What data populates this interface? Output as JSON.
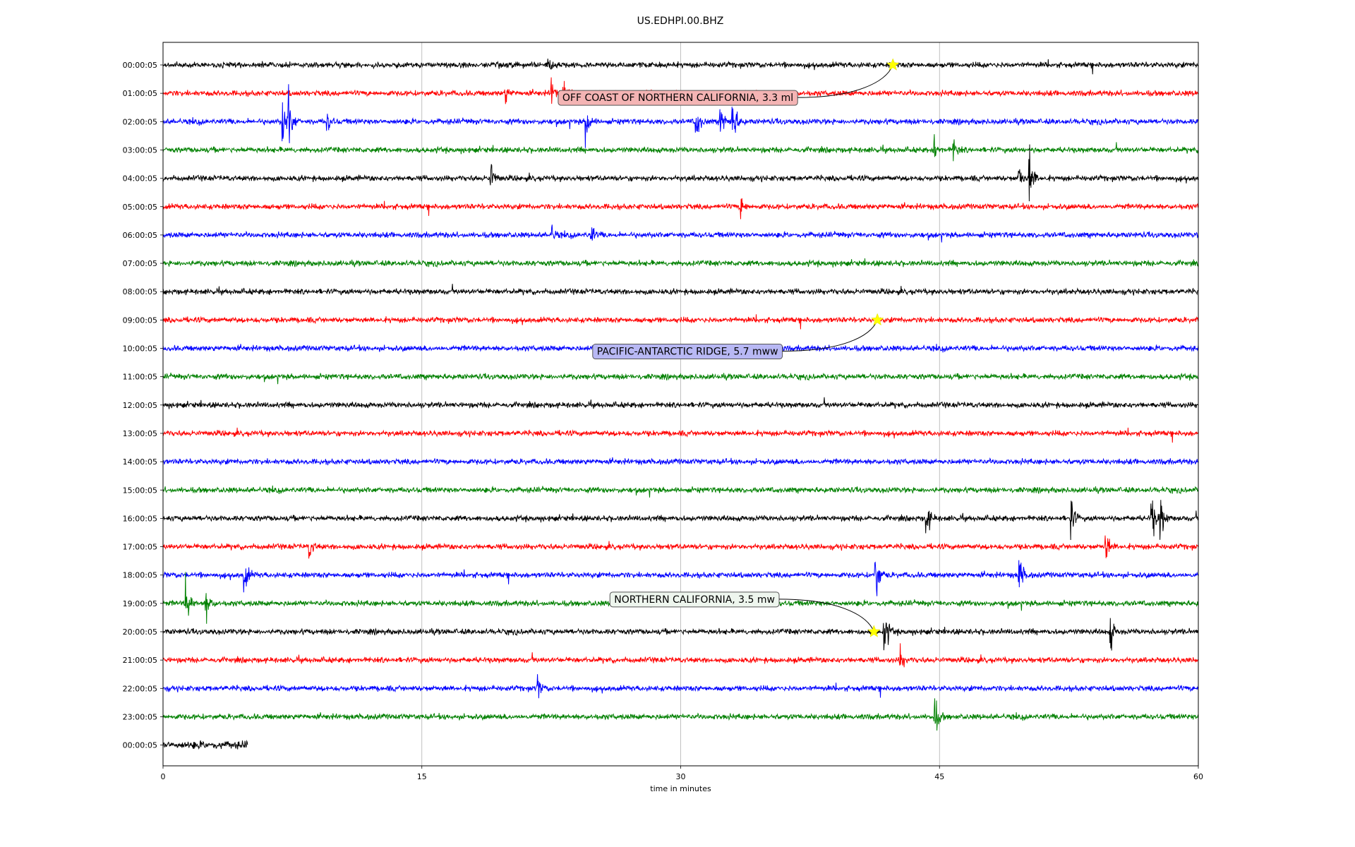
{
  "chart_data": {
    "type": "line",
    "title": "US.EDHPI.00.BHZ",
    "xlabel": "time in minutes",
    "xlim": [
      0,
      60
    ],
    "xticks": [
      "0",
      "15",
      "30",
      "45",
      "60"
    ],
    "xtick_values": [
      0,
      15,
      30,
      45,
      60
    ],
    "grid": "vertical",
    "row_labels": [
      "00:00:05",
      "01:00:05",
      "02:00:05",
      "03:00:05",
      "04:00:05",
      "05:00:05",
      "06:00:05",
      "07:00:05",
      "08:00:05",
      "09:00:05",
      "10:00:05",
      "11:00:05",
      "12:00:05",
      "13:00:05",
      "14:00:05",
      "15:00:05",
      "16:00:05",
      "17:00:05",
      "18:00:05",
      "19:00:05",
      "20:00:05",
      "21:00:05",
      "22:00:05",
      "23:00:05",
      "00:00:05"
    ],
    "row_colors": [
      "#000000",
      "#ff0000",
      "#0000ff",
      "#008000"
    ],
    "last_row_end_minute": 4.9,
    "bursts": [
      {
        "row": 0,
        "minute": 22.3,
        "amp": 1.6
      },
      {
        "row": 1,
        "minute": 19.8,
        "amp": 1.5
      },
      {
        "row": 1,
        "minute": 22.5,
        "amp": 2.2
      },
      {
        "row": 1,
        "minute": 23.2,
        "amp": 2.0
      },
      {
        "row": 2,
        "minute": 6.9,
        "amp": 4.0
      },
      {
        "row": 2,
        "minute": 7.3,
        "amp": 3.5
      },
      {
        "row": 2,
        "minute": 9.5,
        "amp": 1.5
      },
      {
        "row": 2,
        "minute": 24.5,
        "amp": 3.0
      },
      {
        "row": 2,
        "minute": 32.3,
        "amp": 2.5
      },
      {
        "row": 2,
        "minute": 33.0,
        "amp": 4.0
      },
      {
        "row": 2,
        "minute": 30.9,
        "amp": 2.5
      },
      {
        "row": 3,
        "minute": 44.7,
        "amp": 1.8
      },
      {
        "row": 3,
        "minute": 45.8,
        "amp": 1.5
      },
      {
        "row": 4,
        "minute": 50.2,
        "amp": 4.5
      },
      {
        "row": 4,
        "minute": 49.6,
        "amp": 2.0
      },
      {
        "row": 4,
        "minute": 19.0,
        "amp": 2.0
      },
      {
        "row": 5,
        "minute": 33.5,
        "amp": 1.5
      },
      {
        "row": 6,
        "minute": 22.5,
        "amp": 1.2
      },
      {
        "row": 6,
        "minute": 24.8,
        "amp": 1.3
      },
      {
        "row": 16,
        "minute": 44.2,
        "amp": 3.0
      },
      {
        "row": 16,
        "minute": 52.6,
        "amp": 2.8
      },
      {
        "row": 16,
        "minute": 57.3,
        "amp": 3.0
      },
      {
        "row": 16,
        "minute": 57.8,
        "amp": 3.0
      },
      {
        "row": 17,
        "minute": 8.5,
        "amp": 1.5
      },
      {
        "row": 17,
        "minute": 54.6,
        "amp": 3.0
      },
      {
        "row": 18,
        "minute": 4.7,
        "amp": 2.5
      },
      {
        "row": 18,
        "minute": 41.3,
        "amp": 4.0
      },
      {
        "row": 18,
        "minute": 49.6,
        "amp": 3.0
      },
      {
        "row": 19,
        "minute": 1.3,
        "amp": 4.0
      },
      {
        "row": 19,
        "minute": 2.5,
        "amp": 2.5
      },
      {
        "row": 20,
        "minute": 41.8,
        "amp": 3.5
      },
      {
        "row": 20,
        "minute": 54.9,
        "amp": 2.5
      },
      {
        "row": 21,
        "minute": 42.7,
        "amp": 2.0
      },
      {
        "row": 22,
        "minute": 21.7,
        "amp": 1.6
      },
      {
        "row": 23,
        "minute": 44.7,
        "amp": 3.0
      }
    ],
    "events": [
      {
        "label": "OFF COAST OF NORTHERN CALIFORNIA, 3.3 ml",
        "star_row": 0,
        "star_minute": 42.3,
        "label_row": 1.15,
        "label_minute": 22.9,
        "box_color": "#f4b4b4"
      },
      {
        "label": "PACIFIC-ANTARCTIC RIDGE, 5.7 mww",
        "star_row": 9,
        "star_minute": 41.4,
        "label_row": 10.1,
        "label_minute": 24.9,
        "box_color": "#b8b8f4"
      },
      {
        "label": "NORTHERN CALIFORNIA, 3.5 mw",
        "star_row": 20,
        "star_minute": 41.2,
        "label_row": 18.85,
        "label_minute": 25.9,
        "box_color": "#eef6ee"
      }
    ]
  }
}
